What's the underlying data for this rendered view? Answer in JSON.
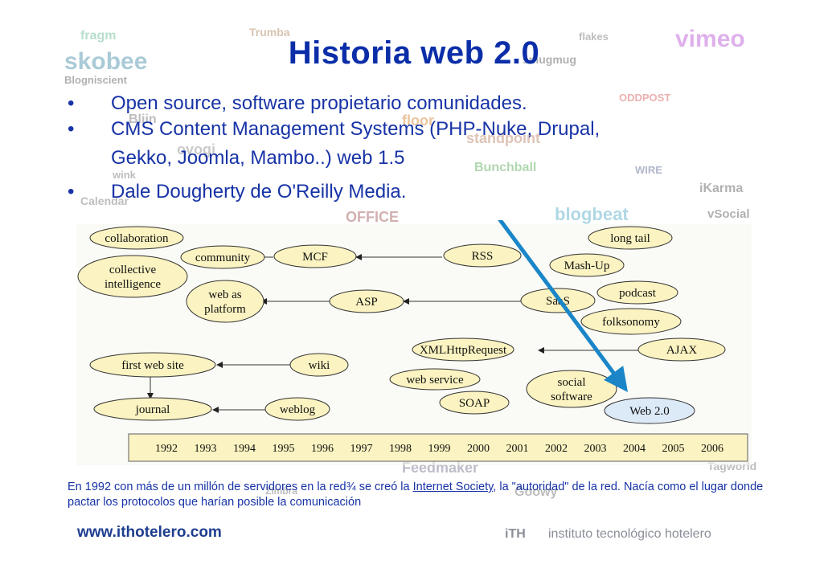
{
  "title": "Historia web 2.0",
  "bullets": [
    {
      "marker": "•",
      "lines": [
        "Open source, software propietario comunidades."
      ]
    },
    {
      "marker": "•",
      "lines": [
        "CMS Content Management Systems (PHP-Nuke, Drupal,",
        "Gekko, Joomla, Mambo..) web 1.5"
      ]
    },
    {
      "marker": "•",
      "lines": [
        "Dale Dougherty de O'Reilly Media."
      ]
    }
  ],
  "background_logos": [
    "fragm",
    "Trumba",
    "flakes",
    "vimeo",
    "skobee",
    "smugmug",
    "Blogniscient",
    "ODDPOST",
    "Bliin",
    "floor",
    "standpoint",
    "ovogi",
    "Bunchball",
    "WIRE",
    "iKarma",
    "OFFICE",
    "blogbeat",
    "vSocial",
    "wink",
    "Calendar",
    "Tagworld",
    "Feedmaker",
    "Zimbra",
    "Goowy"
  ],
  "diagram": {
    "nodes": {
      "collaboration": "collaboration",
      "collective": [
        "collective",
        "intelligence"
      ],
      "community": "community",
      "mcf": "MCF",
      "rss": "RSS",
      "longtail": "long tail",
      "mashup": "Mash-Up",
      "webasplatform": [
        "web as",
        "platform"
      ],
      "asp": "ASP",
      "saas": "SaaS",
      "podcast": "podcast",
      "folksonomy": "folksonomy",
      "xmlhttp": "XMLHttpRequest",
      "ajax": "AJAX",
      "firstweb": "first web site",
      "wiki": "wiki",
      "webservice": "web service",
      "social": [
        "social",
        "software"
      ],
      "soap": "SOAP",
      "journal": "journal",
      "weblog": "weblog",
      "web20": "Web 2.0"
    },
    "years": [
      "1992",
      "1993",
      "1994",
      "1995",
      "1996",
      "1997",
      "1998",
      "1999",
      "2000",
      "2001",
      "2002",
      "2003",
      "2004",
      "2005",
      "2006"
    ]
  },
  "caption": {
    "part1": "En 1992 con más de un millón de servidores en la red¾ se creó la ",
    "link": "Internet Society",
    "part2": ", la \"autoridad\" de la red. Nacía como el lugar donde pactar los protocolos que harían posible la comunicación"
  },
  "footer": {
    "url": "www.ithotelero.com",
    "ith": "iTH",
    "institute": "instituto tecnológico hotelero"
  },
  "colors": {
    "title": "#0b2ea8",
    "text": "#1733a6",
    "node_fill": "#fbf3c1",
    "web20_fill": "#dce9f7",
    "arrow": "#1a86c8",
    "timeline": "#fbf3c1"
  }
}
